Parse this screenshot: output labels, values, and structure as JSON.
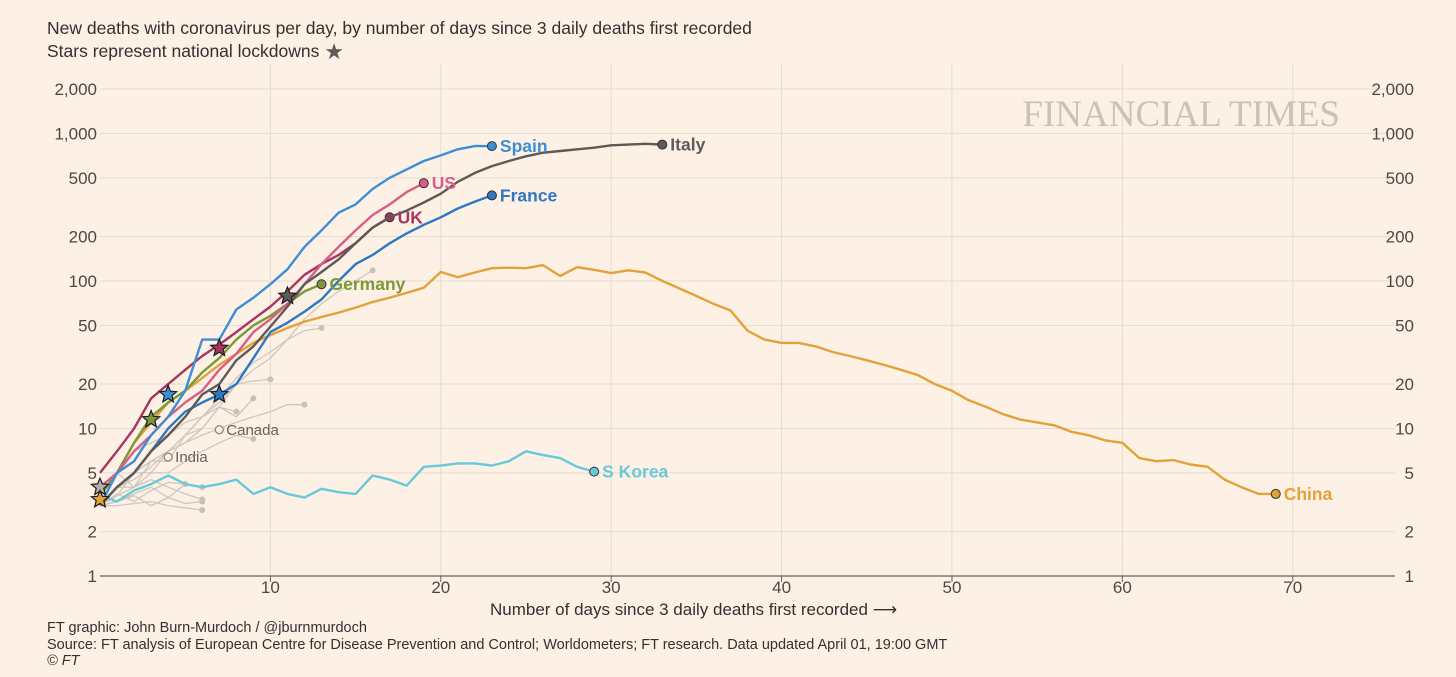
{
  "header": {
    "title": "New deaths with coronavirus per day, by number of days since 3 daily deaths first recorded",
    "subtitle": "Stars represent national lockdowns",
    "subtitle_icon": "star-icon"
  },
  "brand": "FINANCIAL TIMES",
  "footer": {
    "credit": "FT graphic: John Burn-Murdoch / @jburnmurdoch",
    "source": "Source: FT analysis of European Centre for Disease Prevention and Control; Worldometers; FT research. Data updated April 01, 19:00 GMT",
    "copyright": "© FT"
  },
  "chart_data": {
    "type": "line",
    "title": "New deaths with coronavirus per day, by number of days since 3 daily deaths first recorded",
    "xlabel": "Number of days since 3 daily deaths first recorded",
    "xlabel_arrow": "⟶",
    "ylabel": "",
    "y_scale": "log",
    "xlim": [
      0,
      76
    ],
    "ylim": [
      1,
      2000
    ],
    "x_ticks": [
      10,
      20,
      30,
      40,
      50,
      60,
      70
    ],
    "y_ticks": [
      {
        "v": 1,
        "label": "1"
      },
      {
        "v": 2,
        "label": "2"
      },
      {
        "v": 5,
        "label": "5"
      },
      {
        "v": 10,
        "label": "10"
      },
      {
        "v": 20,
        "label": "20"
      },
      {
        "v": 50,
        "label": "50"
      },
      {
        "v": 100,
        "label": "100"
      },
      {
        "v": 200,
        "label": "200"
      },
      {
        "v": 500,
        "label": "500"
      },
      {
        "v": 1000,
        "label": "1,000"
      },
      {
        "v": 2000,
        "label": "2,000"
      }
    ],
    "grid": true,
    "background_series": [
      {
        "x": [
          0,
          1,
          2,
          3,
          4,
          5,
          6,
          7,
          8,
          9,
          10,
          11,
          12,
          13,
          14,
          15,
          16
        ],
        "y": [
          3,
          4,
          4.5,
          5.5,
          7,
          9,
          10,
          14,
          20,
          25,
          30,
          40,
          55,
          70,
          85,
          100,
          118
        ]
      },
      {
        "x": [
          0,
          1,
          2,
          3,
          4,
          5,
          6,
          7,
          8,
          9,
          10,
          11,
          12,
          13
        ],
        "y": [
          3,
          3.5,
          5,
          6,
          7,
          9,
          12,
          16,
          22,
          28,
          33,
          40,
          46,
          48
        ]
      },
      {
        "x": [
          0,
          1,
          2,
          3,
          4,
          5,
          6,
          7,
          8,
          9,
          10,
          11,
          12
        ],
        "y": [
          3,
          4,
          5,
          6,
          7,
          8,
          9,
          10,
          11,
          12,
          13,
          14.5,
          14.5
        ]
      },
      {
        "x": [
          0,
          1,
          2,
          3,
          4,
          5,
          6,
          7,
          8,
          9,
          10
        ],
        "y": [
          3,
          4,
          4,
          6,
          6,
          9,
          12,
          15,
          20,
          21,
          21.5
        ]
      },
      {
        "x": [
          0,
          1,
          2,
          3,
          4,
          5,
          6,
          7,
          8,
          9
        ],
        "y": [
          3,
          4,
          5,
          5,
          7,
          8,
          10,
          14,
          12,
          16
        ]
      },
      {
        "x": [
          0,
          1,
          2,
          3,
          4,
          5,
          6,
          7,
          8,
          9
        ],
        "y": [
          3,
          3.5,
          4,
          5,
          5,
          6,
          7,
          8,
          9,
          8.5
        ]
      },
      {
        "x": [
          0,
          1,
          2,
          3,
          4,
          5,
          6
        ],
        "y": [
          3,
          3.6,
          3.2,
          3.8,
          4.3,
          4.2,
          4
        ]
      },
      {
        "x": [
          0,
          1,
          2,
          3,
          4,
          5,
          6
        ],
        "y": [
          3,
          3.2,
          3.5,
          3,
          3.4,
          3.1,
          3.2
        ]
      },
      {
        "x": [
          0,
          1,
          2,
          3,
          4,
          5,
          6
        ],
        "y": [
          3,
          3,
          3.1,
          3.2,
          3,
          2.9,
          2.8
        ]
      },
      {
        "x": [
          0,
          1,
          2,
          3,
          4,
          5,
          6
        ],
        "y": [
          4,
          5,
          4,
          4.5,
          4,
          3.6,
          3.3
        ]
      },
      {
        "x": [
          0,
          1,
          2,
          3,
          4,
          5
        ],
        "y": [
          3,
          3.2,
          3.6,
          4,
          3.4,
          4.2
        ]
      },
      {
        "x": [
          0,
          1,
          2,
          3,
          4,
          5,
          6,
          7,
          8
        ],
        "y": [
          3,
          5,
          7,
          8,
          9,
          11,
          12,
          14,
          13
        ]
      }
    ],
    "series": [
      {
        "name": "China",
        "color": "#e3a239",
        "x": [
          0,
          1,
          2,
          3,
          4,
          5,
          6,
          7,
          8,
          9,
          10,
          11,
          12,
          13,
          14,
          15,
          16,
          17,
          18,
          19,
          20,
          21,
          22,
          23,
          24,
          25,
          26,
          27,
          28,
          29,
          30,
          31,
          32,
          33,
          34,
          35,
          36,
          37,
          38,
          39,
          40,
          41,
          42,
          43,
          44,
          45,
          46,
          47,
          48,
          49,
          50,
          51,
          52,
          53,
          54,
          55,
          56,
          57,
          58,
          59,
          60,
          61,
          62,
          63,
          64,
          65,
          66,
          67,
          68,
          69
        ],
        "y": [
          3.5,
          5,
          8,
          11,
          15,
          18,
          22,
          27,
          32,
          38,
          43,
          48,
          53,
          57,
          61,
          66,
          72,
          77,
          83,
          90,
          115,
          106,
          114,
          122,
          123,
          122,
          128,
          108,
          124,
          119,
          113,
          118,
          114,
          100,
          89,
          79,
          70,
          63,
          46,
          40,
          38,
          38,
          36,
          33,
          31,
          29,
          27,
          25,
          23,
          20,
          18,
          15.5,
          14,
          12.5,
          11.5,
          11,
          10.5,
          9.5,
          9,
          8.3,
          8,
          6.3,
          6,
          6.1,
          5.7,
          5.5,
          4.5,
          4,
          3.6,
          3.6
        ],
        "label": "China",
        "marker_x": 69,
        "marker_y": 3.6
      },
      {
        "name": "S Korea",
        "color": "#67c9d9",
        "x": [
          0,
          1,
          2,
          3,
          4,
          5,
          6,
          7,
          8,
          9,
          10,
          11,
          12,
          13,
          14,
          15,
          16,
          17,
          18,
          19,
          20,
          21,
          22,
          23,
          24,
          25,
          26,
          27,
          28,
          29
        ],
        "y": [
          3.5,
          3.2,
          3.8,
          4.2,
          4.8,
          4.2,
          4,
          4.2,
          4.5,
          3.6,
          4,
          3.6,
          3.4,
          3.9,
          3.7,
          3.6,
          4.8,
          4.5,
          4.1,
          5.5,
          5.6,
          5.8,
          5.8,
          5.6,
          6,
          7,
          6.6,
          6.3,
          5.5,
          5.1
        ],
        "label": "S Korea",
        "marker_x": 29,
        "marker_y": 5.1
      },
      {
        "name": "Germany",
        "color": "#7a9a37",
        "x": [
          0,
          1,
          2,
          3,
          4,
          5,
          6,
          7,
          8,
          9,
          10,
          11,
          12,
          13
        ],
        "y": [
          3.5,
          5,
          8,
          12,
          15,
          18,
          24,
          30,
          40,
          50,
          58,
          70,
          85,
          95
        ],
        "label": "Germany",
        "marker_x": 13,
        "marker_y": 95
      },
      {
        "name": "UK",
        "color": "#a8345f",
        "x": [
          0,
          1,
          2,
          3,
          4,
          5,
          6,
          7,
          8,
          9,
          10,
          11,
          12,
          13,
          14,
          15,
          16,
          17
        ],
        "y": [
          5,
          7,
          10,
          16,
          20,
          25,
          31,
          37,
          45,
          55,
          67,
          85,
          110,
          130,
          150,
          180,
          230,
          270
        ],
        "label": "UK",
        "marker_x": 17,
        "marker_y": 270
      },
      {
        "name": "US",
        "color": "#d95e87",
        "x": [
          0,
          1,
          2,
          3,
          4,
          5,
          6,
          7,
          8,
          9,
          10,
          11,
          12,
          13,
          14,
          15,
          16,
          17,
          18,
          19
        ],
        "y": [
          4,
          5,
          7,
          9,
          12,
          15,
          18,
          25,
          32,
          45,
          55,
          70,
          95,
          130,
          170,
          220,
          280,
          330,
          400,
          460
        ],
        "label": "US",
        "marker_x": 19,
        "marker_y": 460
      },
      {
        "name": "France",
        "color": "#2e78c3",
        "x": [
          0,
          1,
          2,
          3,
          4,
          5,
          6,
          7,
          8,
          9,
          10,
          11,
          12,
          13,
          14,
          15,
          16,
          17,
          18,
          19,
          20,
          21,
          22,
          23
        ],
        "y": [
          3,
          4,
          5,
          7,
          10,
          13,
          15,
          17,
          20,
          30,
          45,
          52,
          62,
          75,
          100,
          130,
          150,
          180,
          210,
          240,
          270,
          310,
          345,
          380
        ],
        "label": "France",
        "marker_x": 23,
        "marker_y": 380
      },
      {
        "name": "Italy",
        "color": "#5e5a57",
        "x": [
          0,
          1,
          2,
          3,
          4,
          5,
          6,
          7,
          8,
          9,
          10,
          11,
          12,
          13,
          14,
          15,
          16,
          17,
          18,
          19,
          20,
          21,
          22,
          23,
          24,
          25,
          26,
          27,
          28,
          29,
          30,
          31,
          32,
          33
        ],
        "y": [
          3,
          4,
          5,
          7,
          9,
          12,
          17,
          20,
          29,
          36,
          49,
          67,
          95,
          115,
          140,
          180,
          230,
          270,
          300,
          340,
          390,
          470,
          540,
          600,
          650,
          700,
          740,
          760,
          780,
          800,
          830,
          840,
          850,
          840
        ],
        "label": "Italy",
        "marker_x": 33,
        "marker_y": 840
      },
      {
        "name": "Spain",
        "color": "#3c8fd6",
        "x": [
          0,
          1,
          2,
          3,
          4,
          5,
          6,
          7,
          8,
          9,
          10,
          11,
          12,
          13,
          14,
          15,
          16,
          17,
          18,
          19,
          20,
          21,
          22,
          23
        ],
        "y": [
          3,
          5,
          6,
          9,
          12,
          18,
          40,
          40,
          64,
          77,
          95,
          120,
          170,
          220,
          290,
          330,
          420,
          500,
          570,
          650,
          710,
          780,
          820,
          820
        ],
        "label": "Spain",
        "marker_x": 23,
        "marker_y": 820
      }
    ],
    "minor_labels": [
      {
        "label": "Canada",
        "x": 7,
        "y": 9.8
      },
      {
        "label": "India",
        "x": 4,
        "y": 6.4
      }
    ],
    "lockdown_stars": [
      {
        "x": 11,
        "y": 79,
        "color": "#5e5a57"
      },
      {
        "x": 7,
        "y": 35,
        "color": "#a8345f"
      },
      {
        "x": 4,
        "y": 17,
        "color": "#3c8fd6"
      },
      {
        "x": 7,
        "y": 17,
        "color": "#2e78c3"
      },
      {
        "x": 3,
        "y": 11.5,
        "color": "#7a9a37"
      },
      {
        "x": 0,
        "y": 4,
        "color": "#b7b0aa"
      },
      {
        "x": 0,
        "y": 3.3,
        "color": "#e3a239"
      }
    ]
  }
}
